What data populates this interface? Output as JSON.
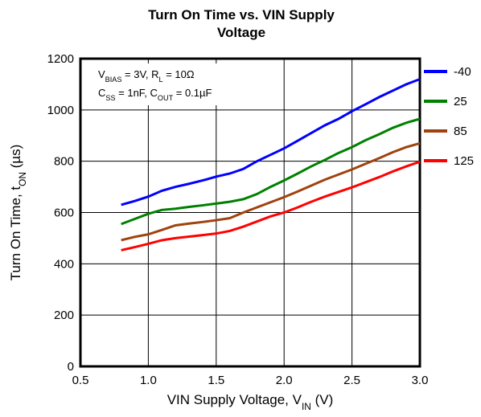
{
  "chart_data": {
    "type": "line",
    "title": [
      "Turn On Time vs. VIN Supply",
      "Voltage"
    ],
    "x_label": [
      "VIN Supply Voltage, V",
      "IN",
      " (V)"
    ],
    "y_label": [
      "Turn On Time, t",
      "ON",
      " (µs)"
    ],
    "annotations": [
      [
        "V",
        "BIAS",
        " = 3V, R",
        "L",
        " = 10Ω"
      ],
      [
        "C",
        "SS",
        " = 1nF, C",
        "OUT",
        " = 0.1µF"
      ]
    ],
    "x": [
      0.8,
      0.9,
      1.0,
      1.1,
      1.2,
      1.3,
      1.4,
      1.5,
      1.6,
      1.7,
      1.8,
      1.9,
      2.0,
      2.1,
      2.2,
      2.3,
      2.4,
      2.5,
      2.6,
      2.7,
      2.8,
      2.9,
      3.0
    ],
    "series": [
      {
        "name": "-40",
        "color": "#0000ff",
        "values": [
          630,
          645,
          662,
          685,
          700,
          712,
          725,
          740,
          752,
          770,
          800,
          825,
          850,
          880,
          910,
          940,
          965,
          995,
          1022,
          1050,
          1075,
          1100,
          1120
        ]
      },
      {
        "name": "25",
        "color": "#008000",
        "values": [
          555,
          575,
          595,
          610,
          615,
          622,
          628,
          635,
          642,
          652,
          672,
          700,
          725,
          752,
          780,
          805,
          832,
          855,
          882,
          905,
          930,
          950,
          965
        ]
      },
      {
        "name": "85",
        "color": "#a0420e",
        "values": [
          492,
          505,
          515,
          532,
          550,
          557,
          563,
          570,
          578,
          600,
          620,
          640,
          660,
          682,
          705,
          728,
          748,
          768,
          790,
          812,
          835,
          855,
          870
        ]
      },
      {
        "name": "125",
        "color": "#ff0000",
        "values": [
          453,
          465,
          478,
          492,
          500,
          506,
          512,
          518,
          528,
          545,
          565,
          585,
          600,
          620,
          642,
          662,
          680,
          698,
          718,
          738,
          760,
          780,
          798
        ]
      }
    ],
    "xlim": [
      0.5,
      3.0
    ],
    "xticks": [
      0.5,
      {
        "value": 1.0,
        "label": "1.0"
      },
      1.5,
      {
        "value": 2.0,
        "label": "2.0"
      },
      2.5,
      {
        "value": 3.0,
        "label": "3.0"
      }
    ],
    "ylim": [
      0,
      1200
    ],
    "yticks": [
      0,
      200,
      400,
      600,
      800,
      1000,
      1200
    ],
    "grid": true,
    "legend": "right"
  }
}
